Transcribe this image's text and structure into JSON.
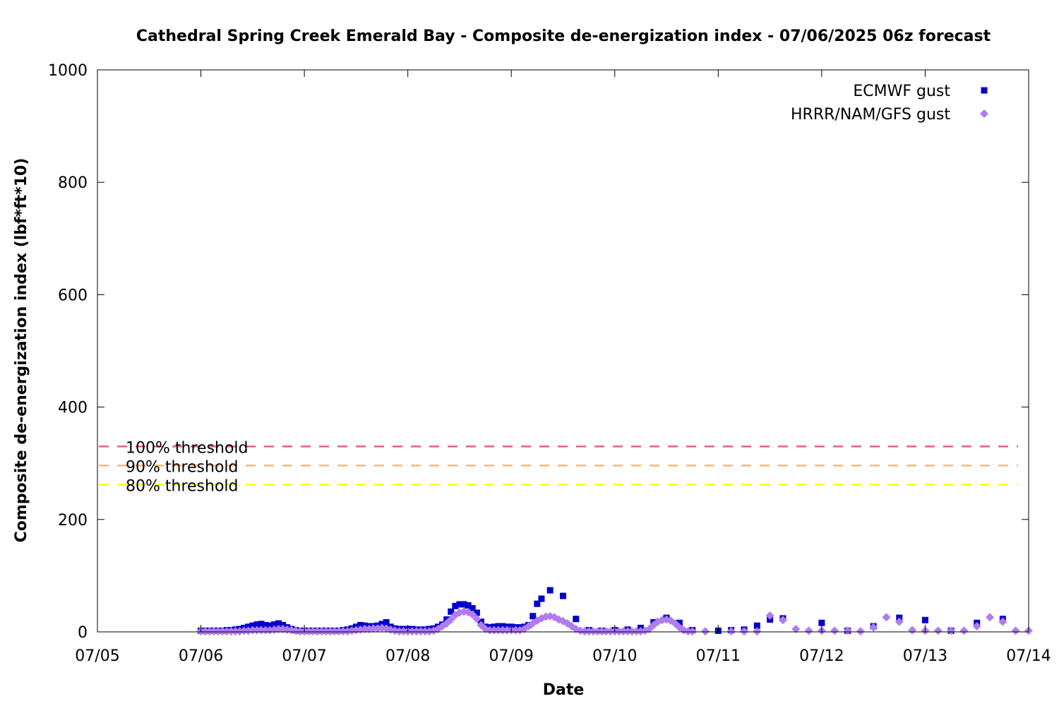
{
  "chart_data": {
    "type": "scatter",
    "title": "Cathedral Spring Creek Emerald Bay - Composite de-energization index - 07/06/2025 06z forecast",
    "xlabel": "Date",
    "ylabel": "Composite de-energization index (lbf*ft*10)",
    "x_tick_labels": [
      "07/05",
      "07/06",
      "07/07",
      "07/08",
      "07/09",
      "07/10",
      "07/11",
      "07/12",
      "07/13",
      "07/14"
    ],
    "y_ticks": [
      0,
      200,
      400,
      600,
      800,
      1000
    ],
    "xlim": [
      "07/05 00z",
      "07/14 00z"
    ],
    "ylim": [
      0,
      1000
    ],
    "grid": false,
    "legend_position": "top-right",
    "thresholds": [
      {
        "label": "100% threshold",
        "value": 330,
        "color": "#e0607e"
      },
      {
        "label": "90% threshold",
        "value": 296,
        "color": "#f5b87a"
      },
      {
        "label": "80% threshold",
        "value": 262,
        "color": "#ffff00"
      }
    ],
    "series": [
      {
        "name": "ECMWF gust",
        "marker": "square",
        "color": "#0000cc",
        "points": [
          [
            "07/06 00z",
            2
          ],
          [
            "07/06 01z",
            2
          ],
          [
            "07/06 02z",
            2
          ],
          [
            "07/06 03z",
            2
          ],
          [
            "07/06 04z",
            2
          ],
          [
            "07/06 05z",
            2
          ],
          [
            "07/06 06z",
            3
          ],
          [
            "07/06 07z",
            3
          ],
          [
            "07/06 08z",
            4
          ],
          [
            "07/06 09z",
            5
          ],
          [
            "07/06 10z",
            7
          ],
          [
            "07/06 11z",
            9
          ],
          [
            "07/06 12z",
            11
          ],
          [
            "07/06 13z",
            13
          ],
          [
            "07/06 14z",
            14
          ],
          [
            "07/06 15z",
            12
          ],
          [
            "07/06 16z",
            11
          ],
          [
            "07/06 17z",
            13
          ],
          [
            "07/06 18z",
            15
          ],
          [
            "07/06 19z",
            12
          ],
          [
            "07/06 20z",
            8
          ],
          [
            "07/06 21z",
            5
          ],
          [
            "07/06 22z",
            3
          ],
          [
            "07/06 23z",
            2
          ],
          [
            "07/07 00z",
            2
          ],
          [
            "07/07 01z",
            2
          ],
          [
            "07/07 02z",
            2
          ],
          [
            "07/07 03z",
            2
          ],
          [
            "07/07 04z",
            2
          ],
          [
            "07/07 05z",
            2
          ],
          [
            "07/07 06z",
            2
          ],
          [
            "07/07 07z",
            2
          ],
          [
            "07/07 08z",
            2
          ],
          [
            "07/07 09z",
            3
          ],
          [
            "07/07 10z",
            4
          ],
          [
            "07/07 11z",
            6
          ],
          [
            "07/07 12z",
            9
          ],
          [
            "07/07 13z",
            12
          ],
          [
            "07/07 14z",
            11
          ],
          [
            "07/07 15z",
            10
          ],
          [
            "07/07 16z",
            10
          ],
          [
            "07/07 17z",
            11
          ],
          [
            "07/07 18z",
            14
          ],
          [
            "07/07 19z",
            17
          ],
          [
            "07/07 20z",
            9
          ],
          [
            "07/07 21z",
            6
          ],
          [
            "07/07 22z",
            5
          ],
          [
            "07/07 23z",
            5
          ],
          [
            "07/08 00z",
            5
          ],
          [
            "07/08 01z",
            5
          ],
          [
            "07/08 02z",
            4
          ],
          [
            "07/08 03z",
            4
          ],
          [
            "07/08 04z",
            4
          ],
          [
            "07/08 05z",
            5
          ],
          [
            "07/08 06z",
            6
          ],
          [
            "07/08 07z",
            9
          ],
          [
            "07/08 08z",
            13
          ],
          [
            "07/08 09z",
            22
          ],
          [
            "07/08 10z",
            36
          ],
          [
            "07/08 11z",
            46
          ],
          [
            "07/08 12z",
            49
          ],
          [
            "07/08 13z",
            49
          ],
          [
            "07/08 14z",
            47
          ],
          [
            "07/08 15z",
            42
          ],
          [
            "07/08 16z",
            34
          ],
          [
            "07/08 17z",
            18
          ],
          [
            "07/08 18z",
            9
          ],
          [
            "07/08 19z",
            8
          ],
          [
            "07/08 20z",
            9
          ],
          [
            "07/08 21z",
            10
          ],
          [
            "07/08 22z",
            10
          ],
          [
            "07/08 23z",
            9
          ],
          [
            "07/09 00z",
            9
          ],
          [
            "07/09 01z",
            8
          ],
          [
            "07/09 02z",
            8
          ],
          [
            "07/09 03z",
            9
          ],
          [
            "07/09 04z",
            12
          ],
          [
            "07/09 05z",
            28
          ],
          [
            "07/09 06z",
            50
          ],
          [
            "07/09 07z",
            59
          ],
          [
            "07/09 09z",
            74
          ],
          [
            "07/09 12z",
            64
          ],
          [
            "07/09 15z",
            23
          ],
          [
            "07/09 18z",
            3
          ],
          [
            "07/09 21z",
            2
          ],
          [
            "07/10 00z",
            3
          ],
          [
            "07/10 03z",
            4
          ],
          [
            "07/10 06z",
            7
          ],
          [
            "07/10 09z",
            17
          ],
          [
            "07/10 12z",
            25
          ],
          [
            "07/10 15z",
            16
          ],
          [
            "07/10 18z",
            3
          ],
          [
            "07/11 00z",
            2
          ],
          [
            "07/11 03z",
            3
          ],
          [
            "07/11 06z",
            4
          ],
          [
            "07/11 09z",
            11
          ],
          [
            "07/11 12z",
            22
          ],
          [
            "07/11 15z",
            24
          ],
          [
            "07/12 00z",
            16
          ],
          [
            "07/12 06z",
            2
          ],
          [
            "07/12 12z",
            10
          ],
          [
            "07/12 18z",
            25
          ],
          [
            "07/13 00z",
            21
          ],
          [
            "07/13 06z",
            2
          ],
          [
            "07/13 12z",
            16
          ],
          [
            "07/13 18z",
            23
          ]
        ]
      },
      {
        "name": "HRRR/NAM/GFS gust",
        "marker": "diamond",
        "color": "#b07cf0",
        "points": [
          [
            "07/06 00z",
            1
          ],
          [
            "07/06 01z",
            1
          ],
          [
            "07/06 02z",
            1
          ],
          [
            "07/06 03z",
            1
          ],
          [
            "07/06 04z",
            1
          ],
          [
            "07/06 05z",
            1
          ],
          [
            "07/06 06z",
            1
          ],
          [
            "07/06 07z",
            1
          ],
          [
            "07/06 08z",
            1
          ],
          [
            "07/06 09z",
            1
          ],
          [
            "07/06 10z",
            2
          ],
          [
            "07/06 11z",
            2
          ],
          [
            "07/06 12z",
            3
          ],
          [
            "07/06 13z",
            3
          ],
          [
            "07/06 14z",
            3
          ],
          [
            "07/06 15z",
            3
          ],
          [
            "07/06 16z",
            3
          ],
          [
            "07/06 17z",
            4
          ],
          [
            "07/06 18z",
            5
          ],
          [
            "07/06 19z",
            5
          ],
          [
            "07/06 20z",
            4
          ],
          [
            "07/06 21z",
            3
          ],
          [
            "07/06 22z",
            2
          ],
          [
            "07/06 23z",
            1
          ],
          [
            "07/07 00z",
            1
          ],
          [
            "07/07 01z",
            1
          ],
          [
            "07/07 02z",
            1
          ],
          [
            "07/07 03z",
            1
          ],
          [
            "07/07 04z",
            1
          ],
          [
            "07/07 05z",
            1
          ],
          [
            "07/07 06z",
            1
          ],
          [
            "07/07 07z",
            1
          ],
          [
            "07/07 08z",
            1
          ],
          [
            "07/07 09z",
            1
          ],
          [
            "07/07 10z",
            1
          ],
          [
            "07/07 11z",
            2
          ],
          [
            "07/07 12z",
            3
          ],
          [
            "07/07 13z",
            4
          ],
          [
            "07/07 14z",
            5
          ],
          [
            "07/07 15z",
            5
          ],
          [
            "07/07 16z",
            6
          ],
          [
            "07/07 17z",
            6
          ],
          [
            "07/07 18z",
            7
          ],
          [
            "07/07 19z",
            6
          ],
          [
            "07/07 20z",
            4
          ],
          [
            "07/07 21z",
            2
          ],
          [
            "07/07 22z",
            1
          ],
          [
            "07/07 23z",
            1
          ],
          [
            "07/08 00z",
            1
          ],
          [
            "07/08 01z",
            1
          ],
          [
            "07/08 02z",
            1
          ],
          [
            "07/08 03z",
            1
          ],
          [
            "07/08 04z",
            1
          ],
          [
            "07/08 05z",
            1
          ],
          [
            "07/08 06z",
            2
          ],
          [
            "07/08 07z",
            5
          ],
          [
            "07/08 08z",
            10
          ],
          [
            "07/08 09z",
            15
          ],
          [
            "07/08 10z",
            22
          ],
          [
            "07/08 11z",
            30
          ],
          [
            "07/08 12z",
            34
          ],
          [
            "07/08 13z",
            36
          ],
          [
            "07/08 14z",
            35
          ],
          [
            "07/08 15z",
            31
          ],
          [
            "07/08 16z",
            23
          ],
          [
            "07/08 17z",
            12
          ],
          [
            "07/08 18z",
            5
          ],
          [
            "07/08 19z",
            3
          ],
          [
            "07/08 20z",
            3
          ],
          [
            "07/08 21z",
            3
          ],
          [
            "07/08 22z",
            3
          ],
          [
            "07/08 23z",
            3
          ],
          [
            "07/09 00z",
            3
          ],
          [
            "07/09 01z",
            3
          ],
          [
            "07/09 02z",
            3
          ],
          [
            "07/09 03z",
            5
          ],
          [
            "07/09 04z",
            10
          ],
          [
            "07/09 05z",
            15
          ],
          [
            "07/09 06z",
            20
          ],
          [
            "07/09 07z",
            24
          ],
          [
            "07/09 08z",
            27
          ],
          [
            "07/09 09z",
            28
          ],
          [
            "07/09 10z",
            26
          ],
          [
            "07/09 11z",
            22
          ],
          [
            "07/09 12z",
            19
          ],
          [
            "07/09 13z",
            15
          ],
          [
            "07/09 14z",
            10
          ],
          [
            "07/09 15z",
            5
          ],
          [
            "07/09 16z",
            2
          ],
          [
            "07/09 17z",
            1
          ],
          [
            "07/09 18z",
            1
          ],
          [
            "07/09 19z",
            1
          ],
          [
            "07/09 20z",
            1
          ],
          [
            "07/09 21z",
            1
          ],
          [
            "07/09 22z",
            1
          ],
          [
            "07/09 23z",
            1
          ],
          [
            "07/10 00z",
            1
          ],
          [
            "07/10 01z",
            1
          ],
          [
            "07/10 02z",
            1
          ],
          [
            "07/10 03z",
            1
          ],
          [
            "07/10 04z",
            1
          ],
          [
            "07/10 05z",
            1
          ],
          [
            "07/10 06z",
            1
          ],
          [
            "07/10 07z",
            2
          ],
          [
            "07/10 08z",
            5
          ],
          [
            "07/10 09z",
            12
          ],
          [
            "07/10 10z",
            18
          ],
          [
            "07/10 11z",
            21
          ],
          [
            "07/10 12z",
            22
          ],
          [
            "07/10 13z",
            20
          ],
          [
            "07/10 14z",
            15
          ],
          [
            "07/10 15z",
            8
          ],
          [
            "07/10 16z",
            3
          ],
          [
            "07/10 17z",
            1
          ],
          [
            "07/10 18z",
            1
          ],
          [
            "07/10 21z",
            1
          ],
          [
            "07/11 03z",
            1
          ],
          [
            "07/11 06z",
            1
          ],
          [
            "07/11 09z",
            1
          ],
          [
            "07/11 12z",
            29
          ],
          [
            "07/11 15z",
            21
          ],
          [
            "07/11 18z",
            5
          ],
          [
            "07/11 21z",
            2
          ],
          [
            "07/12 00z",
            2
          ],
          [
            "07/12 03z",
            2
          ],
          [
            "07/12 06z",
            2
          ],
          [
            "07/12 09z",
            1
          ],
          [
            "07/12 12z",
            8
          ],
          [
            "07/12 15z",
            26
          ],
          [
            "07/12 18z",
            18
          ],
          [
            "07/12 21z",
            3
          ],
          [
            "07/13 00z",
            2
          ],
          [
            "07/13 03z",
            2
          ],
          [
            "07/13 06z",
            2
          ],
          [
            "07/13 09z",
            2
          ],
          [
            "07/13 12z",
            10
          ],
          [
            "07/13 15z",
            26
          ],
          [
            "07/13 18z",
            18
          ],
          [
            "07/13 21z",
            2
          ],
          [
            "07/14 00z",
            2
          ]
        ]
      }
    ]
  }
}
